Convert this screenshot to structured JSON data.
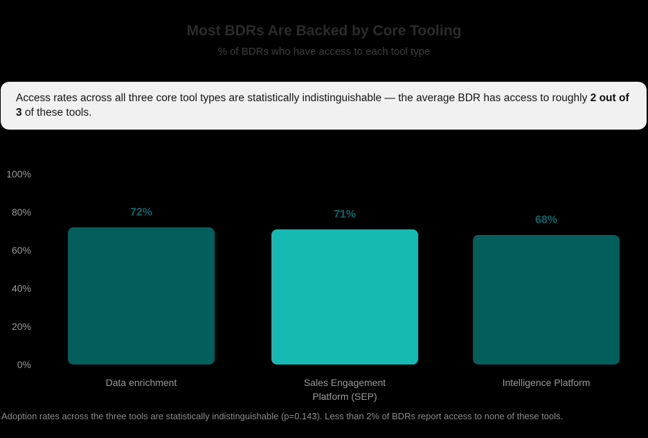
{
  "page": {
    "background": "#000000"
  },
  "header": {
    "title": "Most BDRs Are Backed by Core Tooling",
    "subtitle": "% of BDRs who have access to each tool type"
  },
  "callout": {
    "background": "#F1F1F2",
    "text_before": "Access rates across all three core tool types are statistically indistinguishable — the average BDR has access to roughly ",
    "text_bold": "2 out of 3",
    "text_after": " of these tools."
  },
  "chart_data": {
    "type": "bar",
    "title": "Most BDRs Are Backed by Core Tooling",
    "subtitle": "% of BDRs who have access to each tool type",
    "categories": [
      "Data enrichment",
      "Sales Engagement\nPlatform (SEP)",
      "Intelligence Platform"
    ],
    "values": [
      72,
      71,
      68
    ],
    "value_labels": [
      "72%",
      "71%",
      "68%"
    ],
    "bar_colors": [
      "#045E5C",
      "#16BAB2",
      "#045E5C"
    ],
    "value_label_color": "#0C6468",
    "yticks": [
      "100%",
      "80%",
      "60%",
      "40%",
      "20%",
      "0%"
    ],
    "ylim": [
      0,
      100
    ],
    "xlabel": "",
    "ylabel": "",
    "grid": false,
    "legend": "none"
  },
  "footnote": {
    "text": "Adoption rates across the three tools are statistically indistinguishable (p=0.143). Less than 2% of BDRs report access to none of these tools."
  }
}
